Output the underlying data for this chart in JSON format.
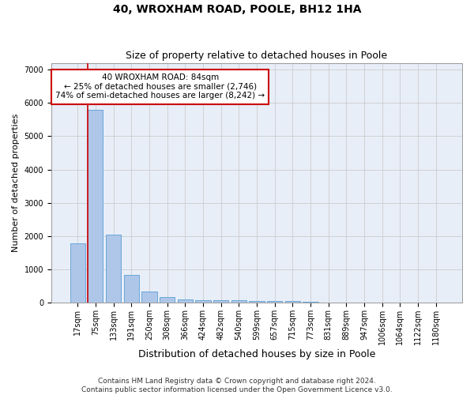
{
  "title": "40, WROXHAM ROAD, POOLE, BH12 1HA",
  "subtitle": "Size of property relative to detached houses in Poole",
  "xlabel": "Distribution of detached houses by size in Poole",
  "ylabel": "Number of detached properties",
  "categories": [
    "17sqm",
    "75sqm",
    "133sqm",
    "191sqm",
    "250sqm",
    "308sqm",
    "366sqm",
    "424sqm",
    "482sqm",
    "540sqm",
    "599sqm",
    "657sqm",
    "715sqm",
    "773sqm",
    "831sqm",
    "889sqm",
    "947sqm",
    "1006sqm",
    "1064sqm",
    "1122sqm",
    "1180sqm"
  ],
  "values": [
    1780,
    5800,
    2050,
    830,
    330,
    170,
    110,
    80,
    75,
    70,
    65,
    60,
    55,
    20,
    15,
    12,
    10,
    8,
    7,
    6,
    5
  ],
  "bar_color": "#aec6e8",
  "bar_edge_color": "#5a9fd4",
  "annotation_text": "40 WROXHAM ROAD: 84sqm\n← 25% of detached houses are smaller (2,746)\n74% of semi-detached houses are larger (8,242) →",
  "annotation_box_color": "#ffffff",
  "annotation_box_edge_color": "#cc0000",
  "red_line_color": "#cc0000",
  "ylim": [
    0,
    7200
  ],
  "yticks": [
    0,
    1000,
    2000,
    3000,
    4000,
    5000,
    6000,
    7000
  ],
  "background_color": "#ffffff",
  "axes_bg_color": "#e8eef8",
  "grid_color": "#cccccc",
  "footnote": "Contains HM Land Registry data © Crown copyright and database right 2024.\nContains public sector information licensed under the Open Government Licence v3.0.",
  "title_fontsize": 10,
  "subtitle_fontsize": 9,
  "xlabel_fontsize": 9,
  "ylabel_fontsize": 8,
  "tick_fontsize": 7,
  "annotation_fontsize": 7.5,
  "footnote_fontsize": 6.5
}
